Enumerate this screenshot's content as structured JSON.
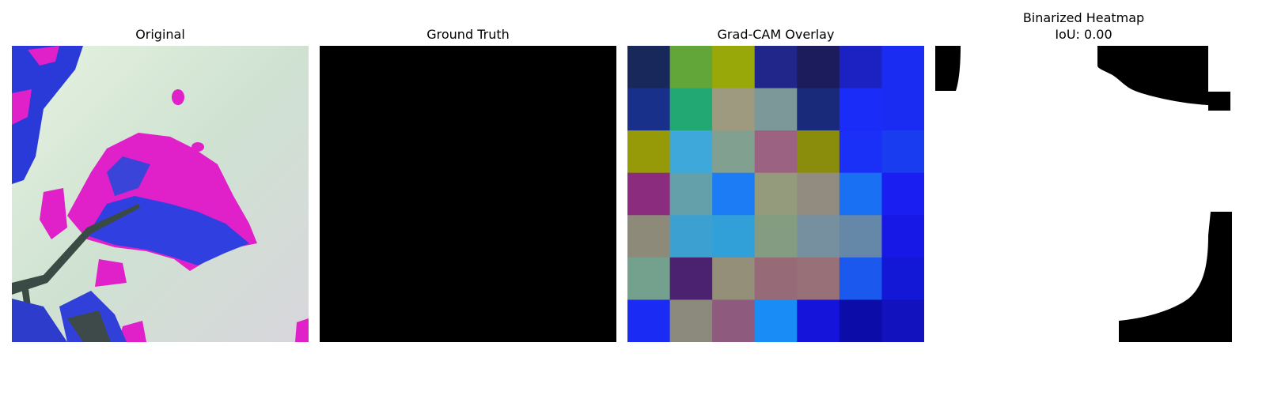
{
  "panels": [
    {
      "title": "Original"
    },
    {
      "title": "Ground Truth"
    },
    {
      "title": "Grad-CAM Overlay"
    },
    {
      "title": "Binarized Heatmap\nIoU: 0.00"
    }
  ],
  "gradcam_grid": [
    [
      "#18285a",
      "#62a63a",
      "#98a808",
      "#20268a",
      "#1c1c5c",
      "#1c22c2",
      "#1a2cf2"
    ],
    [
      "#18308a",
      "#22a872",
      "#9e9a80",
      "#7c9898",
      "#1a2a7a",
      "#1a2cf8",
      "#1a2cf2"
    ],
    [
      "#969a08",
      "#3ea8da",
      "#82a090",
      "#9c6282",
      "#8a8c0c",
      "#1a30f6",
      "#1a3cf0"
    ],
    [
      "#8c2c7e",
      "#64a0aa",
      "#1c7cf6",
      "#949a7c",
      "#928c80",
      "#1a70f2",
      "#1a1ef0"
    ],
    [
      "#8e8a7a",
      "#3ca0d0",
      "#32a0d8",
      "#849c82",
      "#7690a0",
      "#6688a8",
      "#1818e6"
    ],
    [
      "#74a08e",
      "#4a2270",
      "#938f78",
      "#966a76",
      "#987078",
      "#1a58ee",
      "#1218d6"
    ],
    [
      "#1a2cf4",
      "#8c8a7c",
      "#8e5a7e",
      "#1a8cf6",
      "#1414da",
      "#0c0ca8",
      "#1212be"
    ]
  ]
}
